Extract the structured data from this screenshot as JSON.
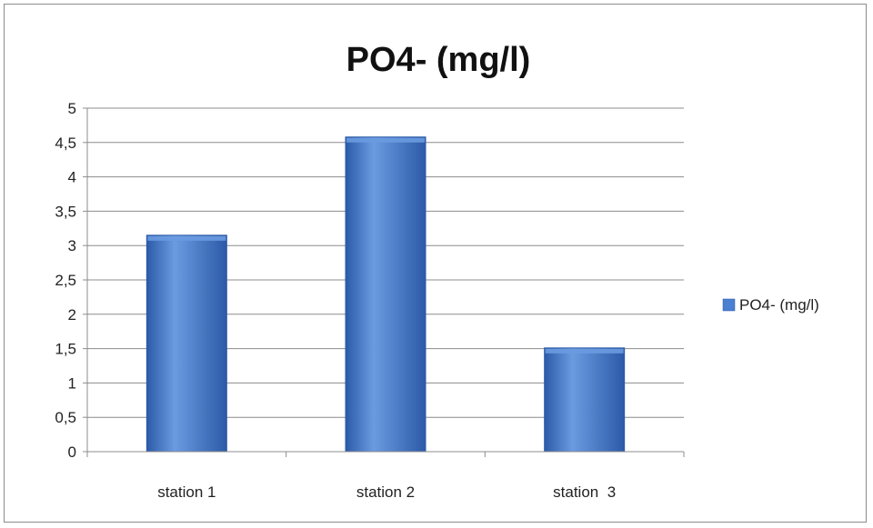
{
  "chart_data": {
    "type": "bar",
    "title": "PO4- (mg/l)",
    "xlabel": "",
    "ylabel": "",
    "categories": [
      "station 1",
      "station 2",
      "station  3"
    ],
    "series": [
      {
        "name": "PO4- (mg/l)",
        "values": [
          3.15,
          4.58,
          1.51
        ]
      }
    ],
    "ylim": [
      0,
      5
    ],
    "yticks": [
      "0",
      "0,5",
      "1",
      "1,5",
      "2",
      "2,5",
      "3",
      "3,5",
      "4",
      "4,5",
      "5"
    ],
    "grid": true,
    "legend_position": "right",
    "colors": {
      "bar": "#4a7fd1",
      "bar_dark": "#2c5aa8",
      "bar_light": "#6a9be0",
      "gridline": "#8c8c8c",
      "axis": "#8c8c8c",
      "text": "#222222"
    }
  }
}
